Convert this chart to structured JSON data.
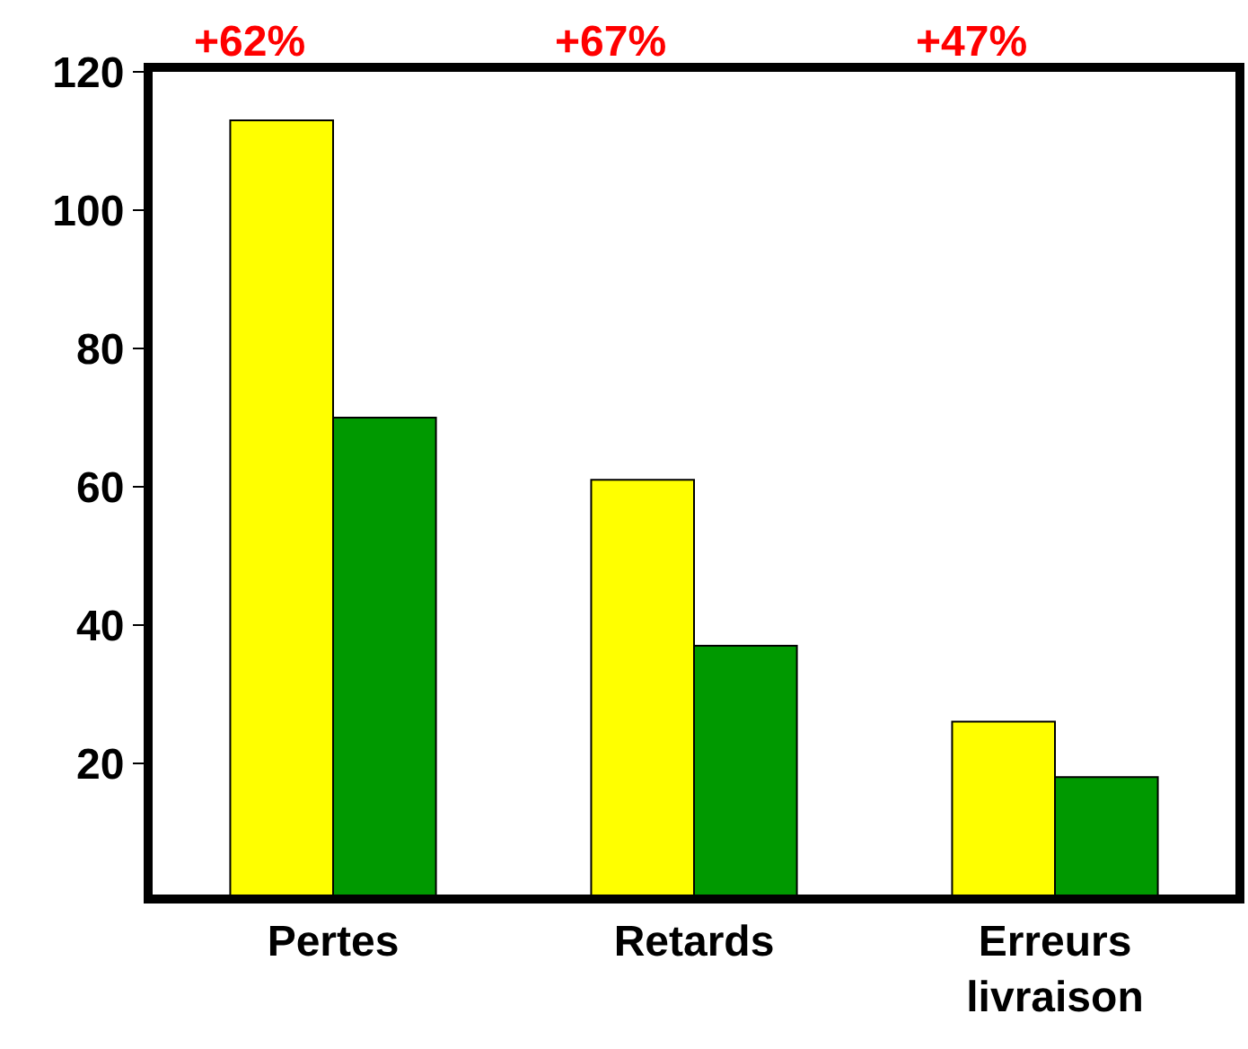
{
  "chart_data": {
    "type": "bar",
    "categories": [
      "Pertes",
      "Retards",
      "Erreurs livraison"
    ],
    "series": [
      {
        "color": "#ffff00",
        "values": [
          113,
          61,
          26
        ]
      },
      {
        "color": "#009900",
        "values": [
          70,
          37,
          18
        ]
      }
    ],
    "ylim": [
      1,
      120
    ],
    "yticks": [
      20,
      40,
      60,
      80,
      100,
      120
    ],
    "annotations": [
      "+62%",
      "+67%",
      "+47%"
    ]
  }
}
